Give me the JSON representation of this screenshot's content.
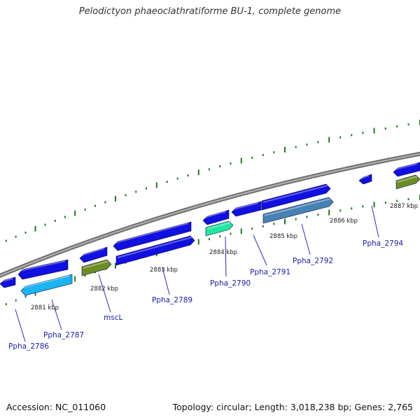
{
  "title": "Pelodictyon phaeoclathratiforme BU-1, complete genome",
  "footer": {
    "accession": "Accession: NC_011060",
    "topology": "Topology: circular; Length: 3,018,238 bp; Genes: 2,765"
  },
  "colors": {
    "backbone": "#8c8c8c",
    "tick": "#1e7a1e",
    "gene_blue": "#1010e0",
    "gene_cyan": "#1ab4f0",
    "gene_olive": "#6b8e23",
    "gene_green": "#1fe8a0",
    "gene_steel": "#4682b4",
    "label_line": "#2a2acc"
  },
  "kbp_labels": [
    "2881 kbp",
    "2882 kbp",
    "2883 kbp",
    "2884 kbp",
    "2885 kbp",
    "2886 kbp",
    "2887 kbp"
  ],
  "gene_labels": [
    "Ppha_2786",
    "Ppha_2787",
    "mscL",
    "Ppha_2789",
    "Ppha_2790",
    "Ppha_2791",
    "Ppha_2792",
    "Ppha_2794"
  ]
}
